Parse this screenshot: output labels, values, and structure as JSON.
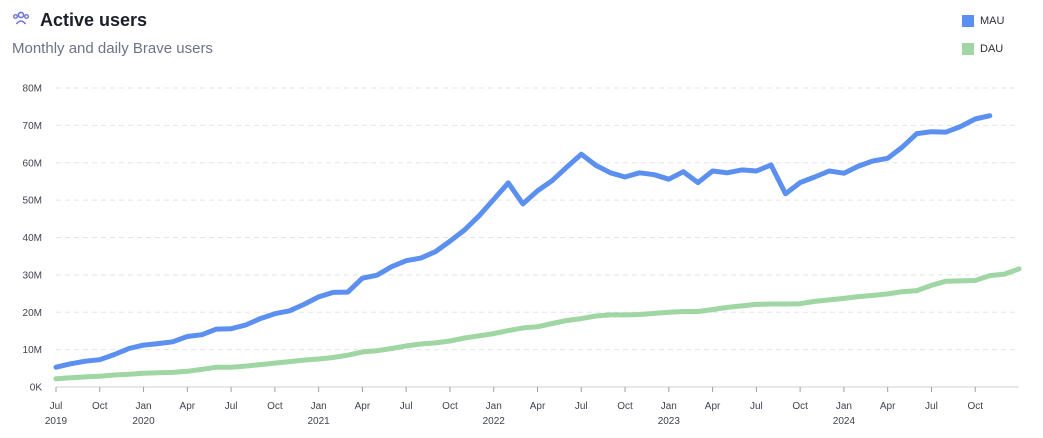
{
  "header": {
    "title": "Active users",
    "icon": "users-icon",
    "subtitle": "Monthly and daily Brave users"
  },
  "colors": {
    "mau": "#5b8ff0",
    "dau": "#9fd6a4",
    "grid": "#e3e5ea",
    "icon": "#6c76d8"
  },
  "chart_data": {
    "type": "line",
    "title": "Active users",
    "subtitle": "Monthly and daily Brave users",
    "xlabel": "",
    "ylabel": "",
    "ylim": [
      0,
      80
    ],
    "y_unit": "M",
    "y_ticks": [
      "0K",
      "10M",
      "20M",
      "30M",
      "40M",
      "50M",
      "60M",
      "70M",
      "80M"
    ],
    "x_start": "2019-07",
    "x_ticks": [
      {
        "month": "2019-07",
        "label": "Jul",
        "year": "2019"
      },
      {
        "month": "2019-10",
        "label": "Oct",
        "year": ""
      },
      {
        "month": "2020-01",
        "label": "Jan",
        "year": "2020"
      },
      {
        "month": "2020-04",
        "label": "Apr",
        "year": ""
      },
      {
        "month": "2020-07",
        "label": "Jul",
        "year": ""
      },
      {
        "month": "2020-10",
        "label": "Oct",
        "year": ""
      },
      {
        "month": "2021-01",
        "label": "Jan",
        "year": "2021"
      },
      {
        "month": "2021-04",
        "label": "Apr",
        "year": ""
      },
      {
        "month": "2021-07",
        "label": "Jul",
        "year": ""
      },
      {
        "month": "2021-10",
        "label": "Oct",
        "year": ""
      },
      {
        "month": "2022-01",
        "label": "Jan",
        "year": "2022"
      },
      {
        "month": "2022-04",
        "label": "Apr",
        "year": ""
      },
      {
        "month": "2022-07",
        "label": "Jul",
        "year": ""
      },
      {
        "month": "2022-10",
        "label": "Oct",
        "year": ""
      },
      {
        "month": "2023-01",
        "label": "Jan",
        "year": "2023"
      },
      {
        "month": "2023-04",
        "label": "Apr",
        "year": ""
      },
      {
        "month": "2023-07",
        "label": "Jul",
        "year": ""
      },
      {
        "month": "2023-10",
        "label": "Oct",
        "year": ""
      },
      {
        "month": "2024-01",
        "label": "Jan",
        "year": "2024"
      },
      {
        "month": "2024-04",
        "label": "Apr",
        "year": ""
      },
      {
        "month": "2024-07",
        "label": "Jul",
        "year": ""
      },
      {
        "month": "2024-10",
        "label": "Oct",
        "year": ""
      }
    ],
    "grid": true,
    "legend_position": "top-right",
    "series": [
      {
        "name": "MAU",
        "values": [
          5.3,
          6.2,
          6.9,
          7.3,
          8.7,
          10.3,
          11.2,
          11.6,
          12.1,
          13.5,
          14,
          15.5,
          15.6,
          16.6,
          18.3,
          19.6,
          20.4,
          22.1,
          24.1,
          25.3,
          25.4,
          29.1,
          29.9,
          32.2,
          33.8,
          34.5,
          36.2,
          39,
          42,
          45.8,
          50.2,
          54.6,
          49,
          52.5,
          55.2,
          58.8,
          62.3,
          59.3,
          57.3,
          56.2,
          57.3,
          56.8,
          55.6,
          57.6,
          54.7,
          57.8,
          57.3,
          58.1,
          57.8,
          59.4,
          51.7,
          54.7,
          56.2,
          57.8,
          57.2,
          59.1,
          60.5,
          61.2,
          64.2,
          67.8,
          68.3,
          68.2,
          69.7,
          71.7,
          72.6
        ]
      },
      {
        "name": "DAU",
        "values": [
          2.2,
          2.5,
          2.7,
          2.9,
          3.2,
          3.4,
          3.7,
          3.8,
          3.9,
          4.2,
          4.7,
          5.3,
          5.3,
          5.6,
          6,
          6.4,
          6.8,
          7.2,
          7.5,
          7.9,
          8.5,
          9.4,
          9.7,
          10.3,
          11,
          11.5,
          11.8,
          12.3,
          13.1,
          13.7,
          14.3,
          15.1,
          15.8,
          16.1,
          17,
          17.8,
          18.3,
          19,
          19.3,
          19.3,
          19.4,
          19.7,
          20,
          20.2,
          20.2,
          20.7,
          21.3,
          21.7,
          22.1,
          22.2,
          22.2,
          22.3,
          22.9,
          23.3,
          23.7,
          24.2,
          24.5,
          24.9,
          25.5,
          25.8,
          27.2,
          28.3,
          28.4,
          28.5,
          29.8,
          30.2,
          31.6
        ]
      }
    ]
  }
}
